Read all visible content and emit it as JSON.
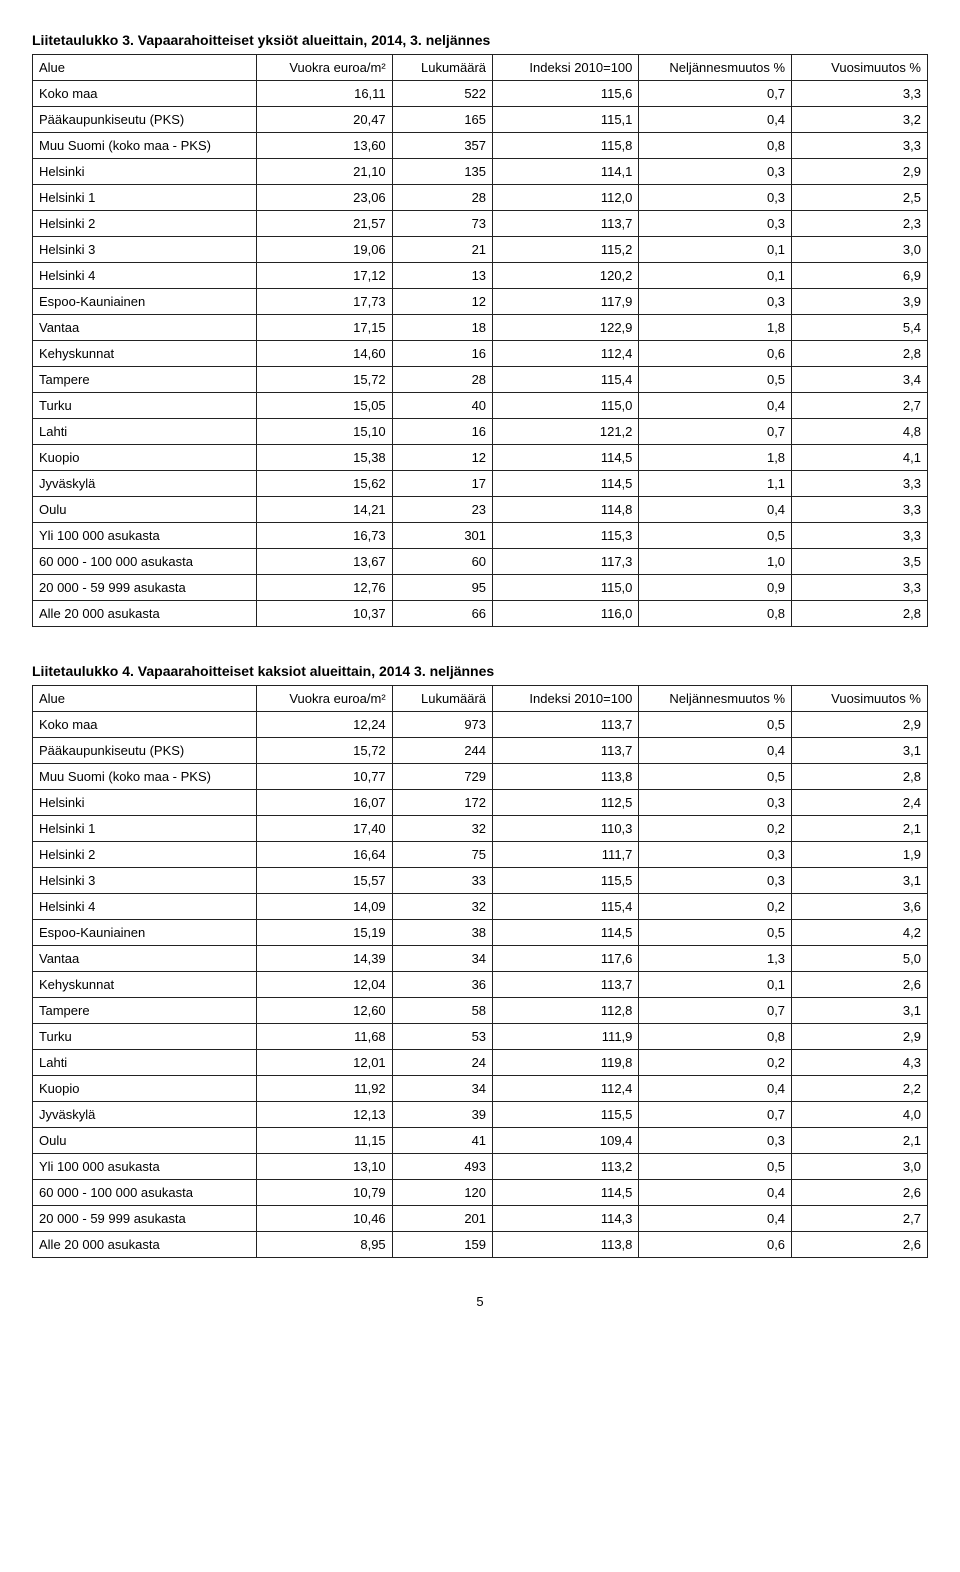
{
  "page_number": "5",
  "headers": {
    "area": "Alue",
    "rent": "Vuokra euroa/m²",
    "count": "Lukumäärä",
    "index": "Indeksi 2010=100",
    "quarter_change": "Neljännesmuutos %",
    "year_change": "Vuosimuutos %"
  },
  "table3": {
    "title": "Liitetaulukko 3. Vapaarahoitteiset yksiöt alueittain, 2014, 3. neljännes",
    "rows": [
      {
        "area": "Koko maa",
        "rent": "16,11",
        "count": "522",
        "index": "115,6",
        "qch": "0,7",
        "ych": "3,3"
      },
      {
        "area": "Pääkaupunkiseutu (PKS)",
        "rent": "20,47",
        "count": "165",
        "index": "115,1",
        "qch": "0,4",
        "ych": "3,2"
      },
      {
        "area": "Muu Suomi (koko maa - PKS)",
        "rent": "13,60",
        "count": "357",
        "index": "115,8",
        "qch": "0,8",
        "ych": "3,3"
      },
      {
        "area": "Helsinki",
        "rent": "21,10",
        "count": "135",
        "index": "114,1",
        "qch": "0,3",
        "ych": "2,9"
      },
      {
        "area": "Helsinki 1",
        "rent": "23,06",
        "count": "28",
        "index": "112,0",
        "qch": "0,3",
        "ych": "2,5"
      },
      {
        "area": "Helsinki 2",
        "rent": "21,57",
        "count": "73",
        "index": "113,7",
        "qch": "0,3",
        "ych": "2,3"
      },
      {
        "area": "Helsinki 3",
        "rent": "19,06",
        "count": "21",
        "index": "115,2",
        "qch": "0,1",
        "ych": "3,0"
      },
      {
        "area": "Helsinki 4",
        "rent": "17,12",
        "count": "13",
        "index": "120,2",
        "qch": "0,1",
        "ych": "6,9"
      },
      {
        "area": "Espoo-Kauniainen",
        "rent": "17,73",
        "count": "12",
        "index": "117,9",
        "qch": "0,3",
        "ych": "3,9"
      },
      {
        "area": "Vantaa",
        "rent": "17,15",
        "count": "18",
        "index": "122,9",
        "qch": "1,8",
        "ych": "5,4"
      },
      {
        "area": "Kehyskunnat",
        "rent": "14,60",
        "count": "16",
        "index": "112,4",
        "qch": "0,6",
        "ych": "2,8"
      },
      {
        "area": "Tampere",
        "rent": "15,72",
        "count": "28",
        "index": "115,4",
        "qch": "0,5",
        "ych": "3,4"
      },
      {
        "area": "Turku",
        "rent": "15,05",
        "count": "40",
        "index": "115,0",
        "qch": "0,4",
        "ych": "2,7"
      },
      {
        "area": "Lahti",
        "rent": "15,10",
        "count": "16",
        "index": "121,2",
        "qch": "0,7",
        "ych": "4,8"
      },
      {
        "area": "Kuopio",
        "rent": "15,38",
        "count": "12",
        "index": "114,5",
        "qch": "1,8",
        "ych": "4,1"
      },
      {
        "area": "Jyväskylä",
        "rent": "15,62",
        "count": "17",
        "index": "114,5",
        "qch": "1,1",
        "ych": "3,3"
      },
      {
        "area": "Oulu",
        "rent": "14,21",
        "count": "23",
        "index": "114,8",
        "qch": "0,4",
        "ych": "3,3"
      },
      {
        "area": "Yli 100 000 asukasta",
        "rent": "16,73",
        "count": "301",
        "index": "115,3",
        "qch": "0,5",
        "ych": "3,3"
      },
      {
        "area": "60 000 - 100 000 asukasta",
        "rent": "13,67",
        "count": "60",
        "index": "117,3",
        "qch": "1,0",
        "ych": "3,5"
      },
      {
        "area": "20 000 - 59 999 asukasta",
        "rent": "12,76",
        "count": "95",
        "index": "115,0",
        "qch": "0,9",
        "ych": "3,3"
      },
      {
        "area": "Alle 20 000 asukasta",
        "rent": "10,37",
        "count": "66",
        "index": "116,0",
        "qch": "0,8",
        "ych": "2,8"
      }
    ]
  },
  "table4": {
    "title": "Liitetaulukko 4. Vapaarahoitteiset kaksiot alueittain, 2014 3. neljännes",
    "rows": [
      {
        "area": "Koko maa",
        "rent": "12,24",
        "count": "973",
        "index": "113,7",
        "qch": "0,5",
        "ych": "2,9"
      },
      {
        "area": "Pääkaupunkiseutu (PKS)",
        "rent": "15,72",
        "count": "244",
        "index": "113,7",
        "qch": "0,4",
        "ych": "3,1"
      },
      {
        "area": "Muu Suomi (koko maa - PKS)",
        "rent": "10,77",
        "count": "729",
        "index": "113,8",
        "qch": "0,5",
        "ych": "2,8"
      },
      {
        "area": "Helsinki",
        "rent": "16,07",
        "count": "172",
        "index": "112,5",
        "qch": "0,3",
        "ych": "2,4"
      },
      {
        "area": "Helsinki 1",
        "rent": "17,40",
        "count": "32",
        "index": "110,3",
        "qch": "0,2",
        "ych": "2,1"
      },
      {
        "area": "Helsinki 2",
        "rent": "16,64",
        "count": "75",
        "index": "111,7",
        "qch": "0,3",
        "ych": "1,9"
      },
      {
        "area": "Helsinki 3",
        "rent": "15,57",
        "count": "33",
        "index": "115,5",
        "qch": "0,3",
        "ych": "3,1"
      },
      {
        "area": "Helsinki 4",
        "rent": "14,09",
        "count": "32",
        "index": "115,4",
        "qch": "0,2",
        "ych": "3,6"
      },
      {
        "area": "Espoo-Kauniainen",
        "rent": "15,19",
        "count": "38",
        "index": "114,5",
        "qch": "0,5",
        "ych": "4,2"
      },
      {
        "area": "Vantaa",
        "rent": "14,39",
        "count": "34",
        "index": "117,6",
        "qch": "1,3",
        "ych": "5,0"
      },
      {
        "area": "Kehyskunnat",
        "rent": "12,04",
        "count": "36",
        "index": "113,7",
        "qch": "0,1",
        "ych": "2,6"
      },
      {
        "area": "Tampere",
        "rent": "12,60",
        "count": "58",
        "index": "112,8",
        "qch": "0,7",
        "ych": "3,1"
      },
      {
        "area": "Turku",
        "rent": "11,68",
        "count": "53",
        "index": "111,9",
        "qch": "0,8",
        "ych": "2,9"
      },
      {
        "area": "Lahti",
        "rent": "12,01",
        "count": "24",
        "index": "119,8",
        "qch": "0,2",
        "ych": "4,3"
      },
      {
        "area": "Kuopio",
        "rent": "11,92",
        "count": "34",
        "index": "112,4",
        "qch": "0,4",
        "ych": "2,2"
      },
      {
        "area": "Jyväskylä",
        "rent": "12,13",
        "count": "39",
        "index": "115,5",
        "qch": "0,7",
        "ych": "4,0"
      },
      {
        "area": "Oulu",
        "rent": "11,15",
        "count": "41",
        "index": "109,4",
        "qch": "0,3",
        "ych": "2,1"
      },
      {
        "area": "Yli 100 000 asukasta",
        "rent": "13,10",
        "count": "493",
        "index": "113,2",
        "qch": "0,5",
        "ych": "3,0"
      },
      {
        "area": "60 000 - 100 000 asukasta",
        "rent": "10,79",
        "count": "120",
        "index": "114,5",
        "qch": "0,4",
        "ych": "2,6"
      },
      {
        "area": "20 000 - 59 999 asukasta",
        "rent": "10,46",
        "count": "201",
        "index": "114,3",
        "qch": "0,4",
        "ych": "2,7"
      },
      {
        "area": "Alle 20 000 asukasta",
        "rent": "8,95",
        "count": "159",
        "index": "113,8",
        "qch": "0,6",
        "ych": "2,6"
      }
    ]
  }
}
